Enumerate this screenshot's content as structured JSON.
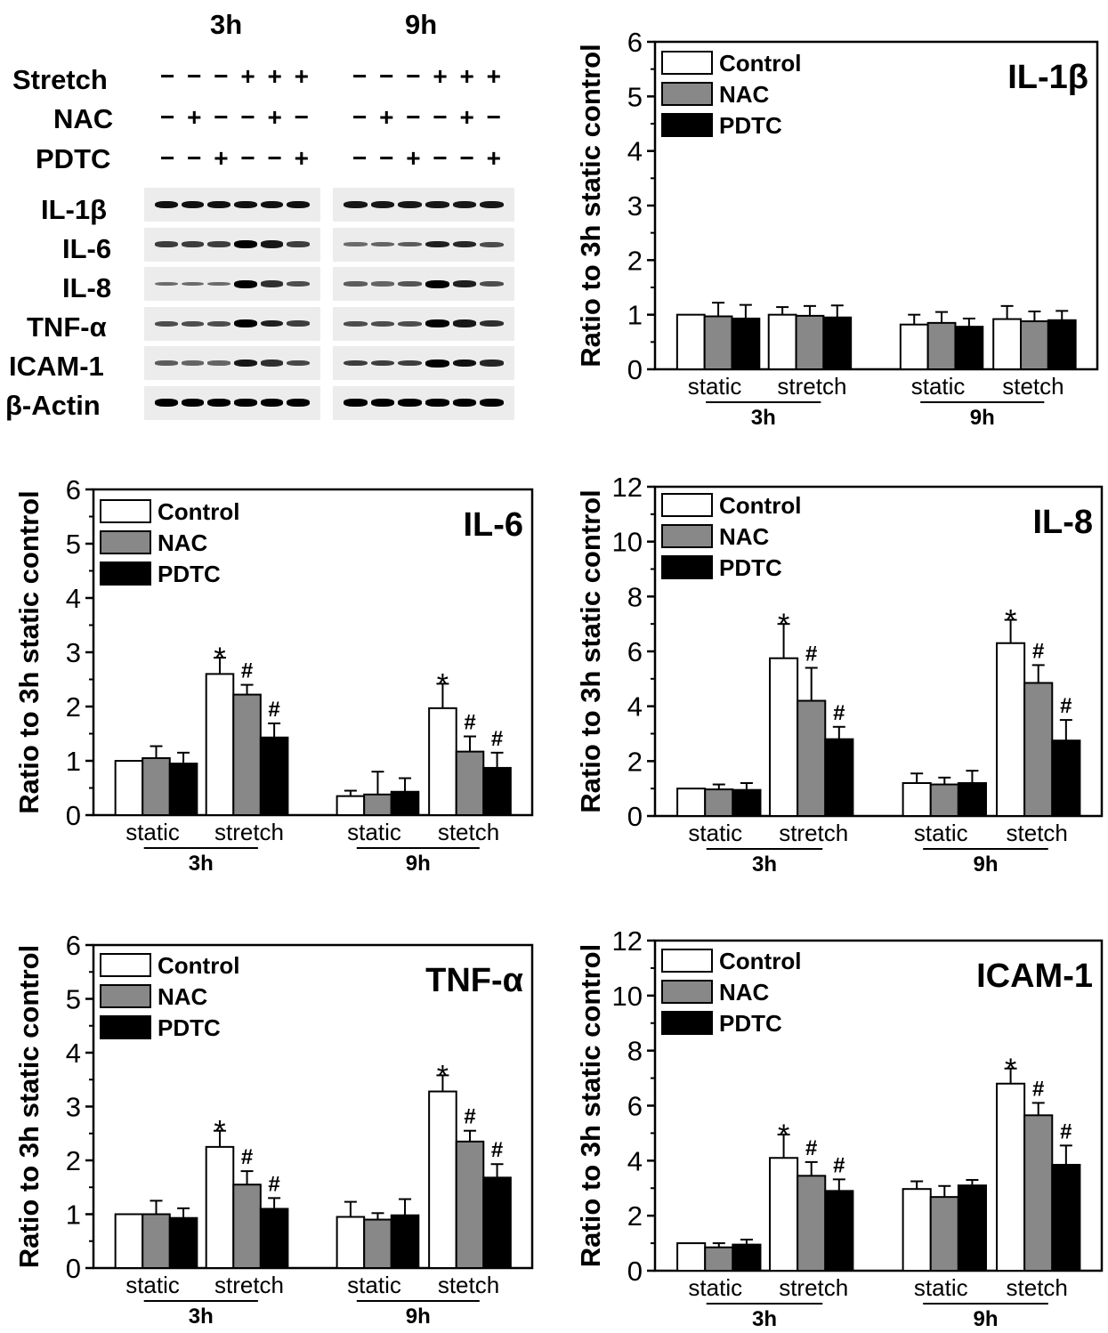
{
  "blot": {
    "time_labels": [
      "3h",
      "9h"
    ],
    "rows": [
      {
        "name": "Stretch",
        "signs_3h": "− − − + + +",
        "signs_9h": "− − − + + +"
      },
      {
        "name": "NAC",
        "signs_3h": "− + − − + −",
        "signs_9h": "− + − − + −"
      },
      {
        "name": "PDTC",
        "signs_3h": "− − + − − +",
        "signs_9h": "− − + − − +"
      }
    ],
    "proteins": [
      {
        "name": "IL-1β",
        "intensity_3h": [
          0.9,
          0.9,
          0.9,
          0.9,
          0.9,
          0.9
        ],
        "intensity_9h": [
          0.85,
          0.85,
          0.85,
          0.85,
          0.85,
          0.85
        ]
      },
      {
        "name": "IL-6",
        "intensity_3h": [
          0.6,
          0.6,
          0.6,
          1.0,
          0.85,
          0.6
        ],
        "intensity_9h": [
          0.3,
          0.35,
          0.4,
          0.8,
          0.75,
          0.5
        ]
      },
      {
        "name": "IL-8",
        "intensity_3h": [
          0.3,
          0.3,
          0.3,
          1.0,
          0.7,
          0.5
        ],
        "intensity_9h": [
          0.4,
          0.35,
          0.45,
          1.0,
          0.8,
          0.5
        ]
      },
      {
        "name": "TNF-α",
        "intensity_3h": [
          0.5,
          0.5,
          0.5,
          1.0,
          0.8,
          0.6
        ],
        "intensity_9h": [
          0.5,
          0.5,
          0.5,
          1.0,
          0.85,
          0.7
        ]
      },
      {
        "name": "ICAM-1",
        "intensity_3h": [
          0.4,
          0.35,
          0.35,
          0.85,
          0.7,
          0.55
        ],
        "intensity_9h": [
          0.6,
          0.6,
          0.6,
          1.0,
          0.9,
          0.75
        ]
      },
      {
        "name": "β-Actin",
        "intensity_3h": [
          1.0,
          1.0,
          1.0,
          1.0,
          1.0,
          1.0
        ],
        "intensity_9h": [
          1.0,
          1.0,
          1.0,
          1.0,
          1.0,
          1.0
        ]
      }
    ]
  },
  "colors": {
    "Control": "#ffffff",
    "NAC": "#888888",
    "PDTC": "#000000"
  },
  "chart_data": [
    {
      "type": "bar",
      "title": "IL-1β",
      "ylabel": "Ratio to 3h static control",
      "ylim": [
        0,
        6
      ],
      "yticks": [
        0,
        1,
        2,
        3,
        4,
        5,
        6
      ],
      "legend": [
        "Control",
        "NAC",
        "PDTC"
      ],
      "legend_position": "top-left",
      "categories": [
        "static",
        "stretch",
        "static",
        "stetch"
      ],
      "groups": [
        "3h",
        "9h"
      ],
      "series": [
        {
          "name": "Control",
          "values": [
            1.0,
            1.0,
            0.82,
            0.92
          ],
          "errors": [
            0,
            0.14,
            0.18,
            0.24
          ]
        },
        {
          "name": "NAC",
          "values": [
            0.97,
            0.98,
            0.85,
            0.88
          ],
          "errors": [
            0.25,
            0.18,
            0.2,
            0.18
          ]
        },
        {
          "name": "PDTC",
          "values": [
            0.93,
            0.95,
            0.78,
            0.9
          ],
          "errors": [
            0.25,
            0.22,
            0.15,
            0.17
          ]
        }
      ],
      "annotations": [
        [
          "",
          "",
          "",
          ""
        ],
        [
          "",
          "",
          "",
          ""
        ],
        [
          "",
          "",
          "",
          ""
        ]
      ]
    },
    {
      "type": "bar",
      "title": "IL-6",
      "ylabel": "Ratio to 3h static control",
      "ylim": [
        0,
        6
      ],
      "yticks": [
        0,
        1,
        2,
        3,
        4,
        5,
        6
      ],
      "legend": [
        "Control",
        "NAC",
        "PDTC"
      ],
      "legend_position": "top-left",
      "categories": [
        "static",
        "stretch",
        "static",
        "stetch"
      ],
      "groups": [
        "3h",
        "9h"
      ],
      "series": [
        {
          "name": "Control",
          "values": [
            1.0,
            2.6,
            0.35,
            1.97
          ],
          "errors": [
            0,
            0.3,
            0.1,
            0.45
          ]
        },
        {
          "name": "NAC",
          "values": [
            1.05,
            2.22,
            0.38,
            1.17
          ],
          "errors": [
            0.22,
            0.18,
            0.42,
            0.28
          ]
        },
        {
          "name": "PDTC",
          "values": [
            0.95,
            1.43,
            0.43,
            0.87
          ],
          "errors": [
            0.2,
            0.26,
            0.25,
            0.28
          ]
        }
      ],
      "annotations": [
        [
          "",
          "*",
          "",
          "*"
        ],
        [
          "",
          "#",
          "",
          "#"
        ],
        [
          "",
          "#",
          "",
          "#"
        ]
      ]
    },
    {
      "type": "bar",
      "title": "IL-8",
      "ylabel": "Ratio to 3h static control",
      "ylim": [
        0,
        12
      ],
      "yticks": [
        0,
        2,
        4,
        6,
        8,
        10,
        12
      ],
      "legend": [
        "Control",
        "NAC",
        "PDTC"
      ],
      "legend_position": "top-left",
      "categories": [
        "static",
        "stretch",
        "static",
        "stetch"
      ],
      "groups": [
        "3h",
        "9h"
      ],
      "series": [
        {
          "name": "Control",
          "values": [
            1.0,
            5.75,
            1.2,
            6.3
          ],
          "errors": [
            0,
            1.25,
            0.35,
            0.85
          ]
        },
        {
          "name": "NAC",
          "values": [
            0.97,
            4.2,
            1.15,
            4.85
          ],
          "errors": [
            0.18,
            1.2,
            0.25,
            0.65
          ]
        },
        {
          "name": "PDTC",
          "values": [
            0.95,
            2.8,
            1.2,
            2.75
          ],
          "errors": [
            0.25,
            0.45,
            0.45,
            0.75
          ]
        }
      ],
      "annotations": [
        [
          "",
          "*",
          "",
          "*"
        ],
        [
          "",
          "#",
          "",
          "#"
        ],
        [
          "",
          "#",
          "",
          "#"
        ]
      ]
    },
    {
      "type": "bar",
      "title": "TNF-α",
      "ylabel": "Ratio to 3h static control",
      "ylim": [
        0,
        6
      ],
      "yticks": [
        0,
        1,
        2,
        3,
        4,
        5,
        6
      ],
      "legend": [
        "Control",
        "NAC",
        "PDTC"
      ],
      "legend_position": "top-left",
      "categories": [
        "static",
        "stretch",
        "static",
        "stetch"
      ],
      "groups": [
        "3h",
        "9h"
      ],
      "series": [
        {
          "name": "Control",
          "values": [
            1.0,
            2.25,
            0.95,
            3.28
          ],
          "errors": [
            0,
            0.3,
            0.28,
            0.3
          ]
        },
        {
          "name": "NAC",
          "values": [
            1.0,
            1.55,
            0.9,
            2.35
          ],
          "errors": [
            0.25,
            0.25,
            0.12,
            0.2
          ]
        },
        {
          "name": "PDTC",
          "values": [
            0.93,
            1.1,
            0.98,
            1.68
          ],
          "errors": [
            0.18,
            0.2,
            0.3,
            0.25
          ]
        }
      ],
      "annotations": [
        [
          "",
          "*",
          "",
          "*"
        ],
        [
          "",
          "#",
          "",
          "#"
        ],
        [
          "",
          "#",
          "",
          "#"
        ]
      ]
    },
    {
      "type": "bar",
      "title": "ICAM-1",
      "ylabel": "Ratio to 3h static control",
      "ylim": [
        0,
        12
      ],
      "yticks": [
        0,
        2,
        4,
        6,
        8,
        10,
        12
      ],
      "legend": [
        "Control",
        "NAC",
        "PDTC"
      ],
      "legend_position": "top-left",
      "categories": [
        "static",
        "stretch",
        "static",
        "stetch"
      ],
      "groups": [
        "3h",
        "9h"
      ],
      "series": [
        {
          "name": "Control",
          "values": [
            1.0,
            4.1,
            2.97,
            6.8
          ],
          "errors": [
            0,
            0.85,
            0.28,
            0.55
          ]
        },
        {
          "name": "NAC",
          "values": [
            0.85,
            3.45,
            2.68,
            5.65
          ],
          "errors": [
            0.15,
            0.5,
            0.4,
            0.45
          ]
        },
        {
          "name": "PDTC",
          "values": [
            0.95,
            2.9,
            3.1,
            3.85
          ],
          "errors": [
            0.18,
            0.42,
            0.2,
            0.7
          ]
        }
      ],
      "annotations": [
        [
          "",
          "*",
          "",
          "*"
        ],
        [
          "",
          "#",
          "",
          "#"
        ],
        [
          "",
          "#",
          "",
          "#"
        ]
      ]
    }
  ]
}
